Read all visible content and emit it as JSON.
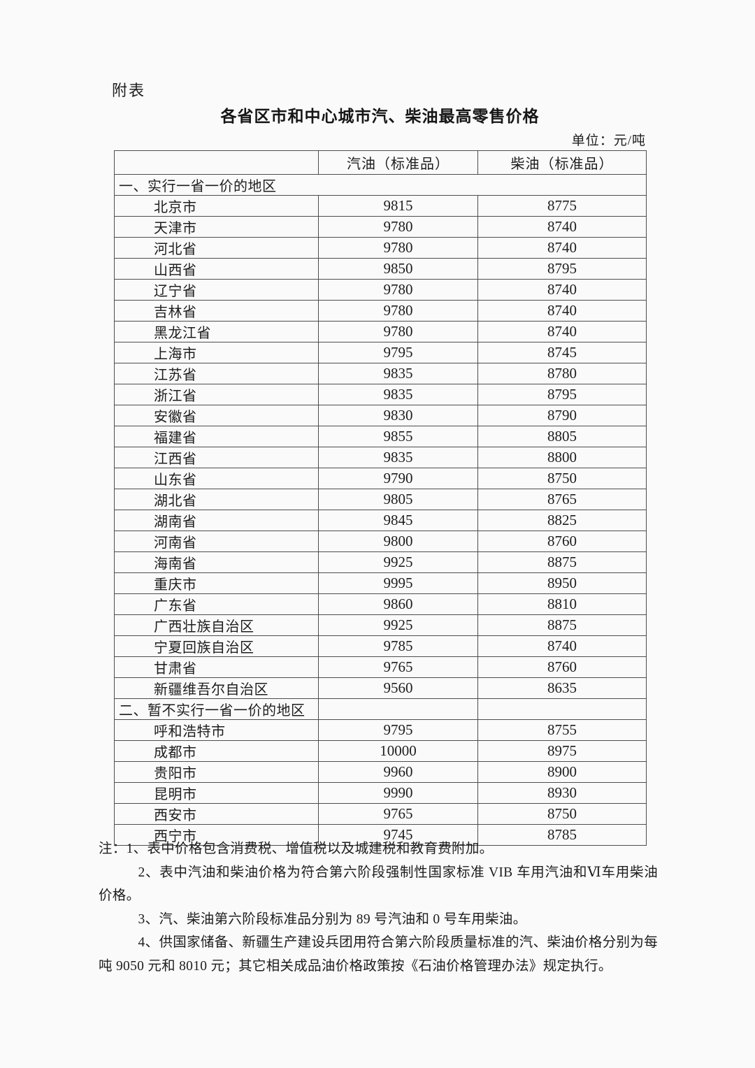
{
  "page": {
    "appendix_label": "附表",
    "title": "各省区市和中心城市汽、柴油最高零售价格",
    "unit_label": "单位：元/吨"
  },
  "colors": {
    "page_background": "#fafafa",
    "text": "#1d1d1d",
    "table_border": "#4d4d4d"
  },
  "table": {
    "columns": [
      "",
      "汽油（标准品）",
      "柴油（标准品）"
    ],
    "sections": [
      {
        "header": "一、实行一省一价的地区",
        "full_width_header": true,
        "rows": [
          {
            "region": "北京市",
            "gasoline": "9815",
            "diesel": "8775"
          },
          {
            "region": "天津市",
            "gasoline": "9780",
            "diesel": "8740"
          },
          {
            "region": "河北省",
            "gasoline": "9780",
            "diesel": "8740"
          },
          {
            "region": "山西省",
            "gasoline": "9850",
            "diesel": "8795"
          },
          {
            "region": "辽宁省",
            "gasoline": "9780",
            "diesel": "8740"
          },
          {
            "region": "吉林省",
            "gasoline": "9780",
            "diesel": "8740"
          },
          {
            "region": "黑龙江省",
            "gasoline": "9780",
            "diesel": "8740"
          },
          {
            "region": "上海市",
            "gasoline": "9795",
            "diesel": "8745"
          },
          {
            "region": "江苏省",
            "gasoline": "9835",
            "diesel": "8780"
          },
          {
            "region": "浙江省",
            "gasoline": "9835",
            "diesel": "8795"
          },
          {
            "region": "安徽省",
            "gasoline": "9830",
            "diesel": "8790"
          },
          {
            "region": "福建省",
            "gasoline": "9855",
            "diesel": "8805"
          },
          {
            "region": "江西省",
            "gasoline": "9835",
            "diesel": "8800"
          },
          {
            "region": "山东省",
            "gasoline": "9790",
            "diesel": "8750"
          },
          {
            "region": "湖北省",
            "gasoline": "9805",
            "diesel": "8765"
          },
          {
            "region": "湖南省",
            "gasoline": "9845",
            "diesel": "8825"
          },
          {
            "region": "河南省",
            "gasoline": "9800",
            "diesel": "8760"
          },
          {
            "region": "海南省",
            "gasoline": "9925",
            "diesel": "8875"
          },
          {
            "region": "重庆市",
            "gasoline": "9995",
            "diesel": "8950"
          },
          {
            "region": "广东省",
            "gasoline": "9860",
            "diesel": "8810"
          },
          {
            "region": "广西壮族自治区",
            "gasoline": "9925",
            "diesel": "8875"
          },
          {
            "region": "宁夏回族自治区",
            "gasoline": "9785",
            "diesel": "8740"
          },
          {
            "region": "甘肃省",
            "gasoline": "9765",
            "diesel": "8760"
          },
          {
            "region": "新疆维吾尔自治区",
            "gasoline": "9560",
            "diesel": "8635"
          }
        ]
      },
      {
        "header": "二、暂不实行一省一价的地区",
        "full_width_header": false,
        "rows": [
          {
            "region": "呼和浩特市",
            "gasoline": "9795",
            "diesel": "8755"
          },
          {
            "region": "成都市",
            "gasoline": "10000",
            "diesel": "8975"
          },
          {
            "region": "贵阳市",
            "gasoline": "9960",
            "diesel": "8900"
          },
          {
            "region": "昆明市",
            "gasoline": "9990",
            "diesel": "8930"
          },
          {
            "region": "西安市",
            "gasoline": "9765",
            "diesel": "8750"
          },
          {
            "region": "西宁市",
            "gasoline": "9745",
            "diesel": "8785"
          }
        ]
      }
    ]
  },
  "notes": [
    "注：1、表中价格包含消费税、增值税以及城建税和教育费附加。",
    "2、表中汽油和柴油价格为符合第六阶段强制性国家标准 VIB 车用汽油和Ⅵ车用柴油价格。",
    "3、汽、柴油第六阶段标准品分别为 89 号汽油和 0 号车用柴油。",
    "4、供国家储备、新疆生产建设兵团用符合第六阶段质量标准的汽、柴油价格分别为每吨 9050 元和 8010 元；其它相关成品油价格政策按《石油价格管理办法》规定执行。"
  ]
}
